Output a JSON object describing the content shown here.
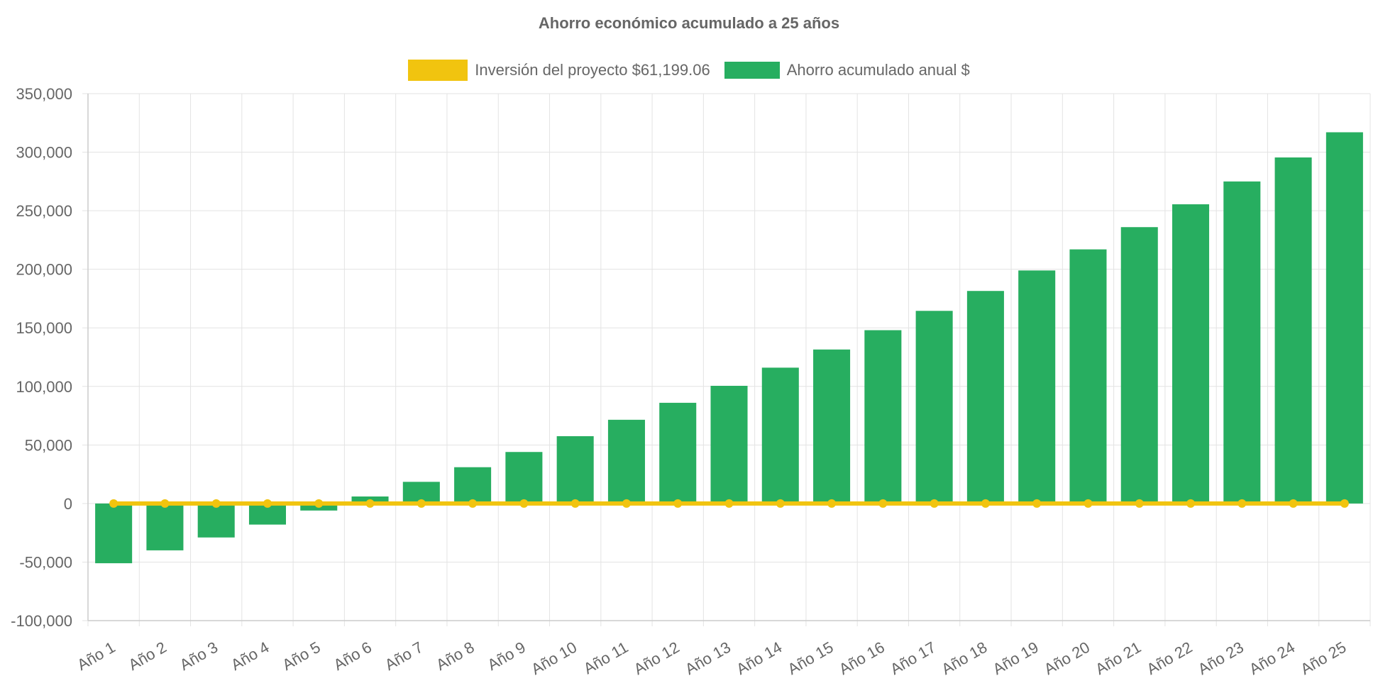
{
  "chart_data": {
    "type": "bar",
    "title": "Ahorro económico acumulado a 25 años",
    "categories": [
      "Año 1",
      "Año 2",
      "Año 3",
      "Año 4",
      "Año 5",
      "Año 6",
      "Año 7",
      "Año 8",
      "Año 9",
      "Año 10",
      "Año 11",
      "Año 12",
      "Año 13",
      "Año 14",
      "Año 15",
      "Año 16",
      "Año 17",
      "Año 18",
      "Año 19",
      "Año 20",
      "Año 21",
      "Año 22",
      "Año 23",
      "Año 24",
      "Año 25"
    ],
    "series": [
      {
        "name": "Inversión del proyecto $61,199.06",
        "type": "line",
        "color": "#F1C40F",
        "values": [
          0,
          0,
          0,
          0,
          0,
          0,
          0,
          0,
          0,
          0,
          0,
          0,
          0,
          0,
          0,
          0,
          0,
          0,
          0,
          0,
          0,
          0,
          0,
          0,
          0
        ]
      },
      {
        "name": "Ahorro acumulado anual $",
        "type": "bar",
        "color": "#27AE60",
        "values": [
          -51000,
          -40000,
          -29000,
          -18000,
          -6000,
          6000,
          18500,
          31000,
          44000,
          57500,
          71500,
          86000,
          100500,
          116000,
          131500,
          148000,
          164500,
          181500,
          199000,
          217000,
          236000,
          255500,
          275000,
          295500,
          317000
        ]
      }
    ],
    "yticks": [
      "350,000",
      "300,000",
      "250,000",
      "200,000",
      "150,000",
      "100,000",
      "50,000",
      "0",
      "-50,000",
      "-100,000"
    ],
    "ylim": [
      -100000,
      350000
    ],
    "grid": true,
    "legend_position": "top"
  }
}
